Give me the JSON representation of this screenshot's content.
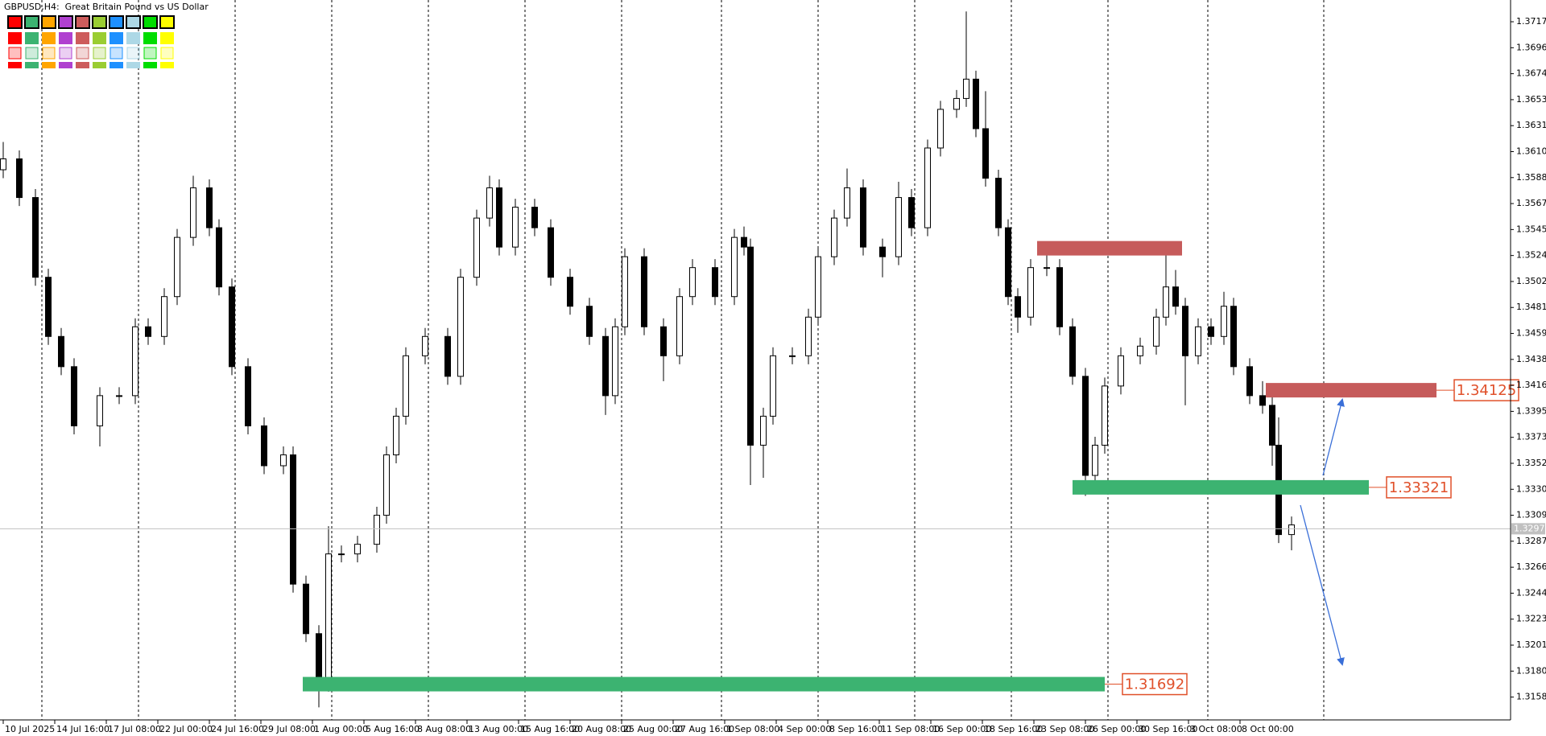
{
  "chart_data": {
    "type": "candlestick",
    "title": "GBPUSD,H4:  Great Britain Pound vs US Dollar",
    "x": [
      0,
      5,
      10,
      14,
      18,
      22,
      30,
      36,
      41,
      45,
      50,
      54,
      59,
      64,
      67,
      71,
      76,
      81,
      87,
      90,
      94,
      98,
      101,
      105,
      110,
      116,
      119,
      122,
      125,
      131,
      138,
      142,
      147,
      151,
      154,
      159,
      165,
      170,
      176,
      182,
      187,
      190,
      193,
      199,
      205,
      210,
      214,
      221,
      227,
      230,
      232,
      236,
      239,
      245,
      250,
      253,
      258,
      262,
      267,
      273,
      278,
      282,
      287,
      291,
      296,
      299,
      302,
      305,
      309,
      312,
      315,
      319,
      324,
      328,
      332,
      336,
      339,
      342,
      347,
      353,
      358,
      361,
      364,
      367,
      371,
      375,
      379,
      382,
      387,
      391,
      394,
      396,
      400
    ],
    "open": [
      1.3595,
      1.3604,
      1.3572,
      1.3506,
      1.3457,
      1.3432,
      1.3383,
      1.3408,
      1.3408,
      1.3465,
      1.3457,
      1.349,
      1.3539,
      1.358,
      1.3547,
      1.3498,
      1.3432,
      1.3383,
      1.335,
      1.3359,
      1.3252,
      1.3211,
      1.317,
      1.3277,
      1.3277,
      1.3285,
      1.3309,
      1.3359,
      1.3391,
      1.3441,
      1.3457,
      1.3424,
      1.3506,
      1.3555,
      1.358,
      1.3531,
      1.3564,
      1.3547,
      1.3506,
      1.3482,
      1.3457,
      1.3408,
      1.3465,
      1.3523,
      1.3465,
      1.3441,
      1.349,
      1.3514,
      1.349,
      1.3539,
      1.3531,
      1.3367,
      1.3391,
      1.3441,
      1.3441,
      1.3473,
      1.3523,
      1.3555,
      1.358,
      1.3531,
      1.3523,
      1.3572,
      1.3547,
      1.3613,
      1.3645,
      1.3654,
      1.367,
      1.3629,
      1.3588,
      1.3547,
      1.349,
      1.3473,
      1.3514,
      1.3514,
      1.3465,
      1.3424,
      1.3342,
      1.3367,
      1.3416,
      1.3441,
      1.3449,
      1.3473,
      1.3498,
      1.3482,
      1.3441,
      1.3465,
      1.3457,
      1.3482,
      1.3432,
      1.3408,
      1.34,
      1.3367,
      1.3293
    ],
    "high": [
      1.3618,
      1.3611,
      1.3579,
      1.3513,
      1.3464,
      1.3439,
      1.3415,
      1.3415,
      1.3472,
      1.3472,
      1.3497,
      1.3546,
      1.359,
      1.3587,
      1.3554,
      1.3505,
      1.3439,
      1.339,
      1.3366,
      1.3366,
      1.3259,
      1.3218,
      1.33,
      1.3284,
      1.3292,
      1.3316,
      1.3366,
      1.3398,
      1.3448,
      1.3464,
      1.3464,
      1.3513,
      1.3562,
      1.359,
      1.3587,
      1.3571,
      1.3571,
      1.3554,
      1.3513,
      1.3489,
      1.3464,
      1.3472,
      1.353,
      1.353,
      1.3472,
      1.3497,
      1.3521,
      1.3521,
      1.3546,
      1.3548,
      1.3538,
      1.3398,
      1.3448,
      1.3448,
      1.348,
      1.353,
      1.3562,
      1.3596,
      1.3587,
      1.3538,
      1.3585,
      1.3579,
      1.362,
      1.3652,
      1.3661,
      1.3726,
      1.3677,
      1.366,
      1.3595,
      1.3554,
      1.3497,
      1.3521,
      1.353,
      1.3521,
      1.3472,
      1.3431,
      1.3374,
      1.3423,
      1.3448,
      1.3456,
      1.348,
      1.353,
      1.3512,
      1.3489,
      1.3472,
      1.3472,
      1.3494,
      1.3489,
      1.3439,
      1.342,
      1.3407,
      1.339,
      1.3308
    ],
    "low": [
      1.3588,
      1.3565,
      1.3499,
      1.345,
      1.3425,
      1.3376,
      1.3366,
      1.3401,
      1.3401,
      1.345,
      1.345,
      1.3483,
      1.3532,
      1.354,
      1.3491,
      1.3425,
      1.3376,
      1.3343,
      1.3343,
      1.3245,
      1.3204,
      1.315,
      1.3163,
      1.327,
      1.327,
      1.3278,
      1.3302,
      1.3352,
      1.3384,
      1.3434,
      1.3417,
      1.3417,
      1.3499,
      1.3548,
      1.3524,
      1.3524,
      1.354,
      1.3499,
      1.3475,
      1.345,
      1.3392,
      1.3401,
      1.3458,
      1.3458,
      1.342,
      1.3434,
      1.3483,
      1.3483,
      1.3483,
      1.3524,
      1.3334,
      1.334,
      1.3384,
      1.3434,
      1.3434,
      1.3466,
      1.3516,
      1.3548,
      1.3524,
      1.3506,
      1.3516,
      1.354,
      1.354,
      1.3606,
      1.3638,
      1.3647,
      1.3622,
      1.3581,
      1.354,
      1.3483,
      1.346,
      1.3466,
      1.3507,
      1.3458,
      1.3417,
      1.3325,
      1.3335,
      1.336,
      1.3409,
      1.3434,
      1.3442,
      1.3466,
      1.3475,
      1.34,
      1.3434,
      1.345,
      1.345,
      1.3425,
      1.3401,
      1.3393,
      1.335,
      1.3286,
      1.328
    ],
    "close": [
      1.3604,
      1.3572,
      1.3506,
      1.3457,
      1.3432,
      1.3383,
      1.3408,
      1.3408,
      1.3465,
      1.3457,
      1.349,
      1.3539,
      1.358,
      1.3547,
      1.3498,
      1.3432,
      1.3383,
      1.335,
      1.3359,
      1.3252,
      1.3211,
      1.317,
      1.3277,
      1.3277,
      1.3285,
      1.3309,
      1.3359,
      1.3391,
      1.3441,
      1.3457,
      1.3424,
      1.3506,
      1.3555,
      1.358,
      1.3531,
      1.3564,
      1.3547,
      1.3506,
      1.3482,
      1.3457,
      1.3408,
      1.3465,
      1.3523,
      1.3465,
      1.3441,
      1.349,
      1.3514,
      1.349,
      1.3539,
      1.3531,
      1.3367,
      1.3391,
      1.3441,
      1.3441,
      1.3473,
      1.3523,
      1.3555,
      1.358,
      1.3531,
      1.3523,
      1.3572,
      1.3547,
      1.3613,
      1.3645,
      1.3654,
      1.367,
      1.3629,
      1.3588,
      1.3547,
      1.349,
      1.3473,
      1.3514,
      1.3514,
      1.3465,
      1.3424,
      1.3342,
      1.3367,
      1.3416,
      1.3441,
      1.3449,
      1.3473,
      1.3498,
      1.3482,
      1.3441,
      1.3465,
      1.3457,
      1.3482,
      1.3432,
      1.3408,
      1.34,
      1.3367,
      1.3293,
      1.3301
    ],
    "up_color": "#ffffff",
    "down_color": "#000000",
    "xlim": [
      -1,
      468
    ],
    "ylim": [
      1.31396,
      1.37355
    ],
    "xticks": [
      {
        "value": 0,
        "label": "10 Jul 2025"
      },
      {
        "value": 16,
        "label": "14 Jul 16:00"
      },
      {
        "value": 32,
        "label": "17 Jul 08:00"
      },
      {
        "value": 48,
        "label": "22 Jul 00:00"
      },
      {
        "value": 64,
        "label": "24 Jul 16:00"
      },
      {
        "value": 80,
        "label": "29 Jul 08:00"
      },
      {
        "value": 96,
        "label": "1 Aug 00:00"
      },
      {
        "value": 112,
        "label": "5 Aug 16:00"
      },
      {
        "value": 128,
        "label": "8 Aug 08:00"
      },
      {
        "value": 144,
        "label": "13 Aug 00:00"
      },
      {
        "value": 160,
        "label": "15 Aug 16:00"
      },
      {
        "value": 176,
        "label": "20 Aug 08:00"
      },
      {
        "value": 192,
        "label": "25 Aug 00:00"
      },
      {
        "value": 208,
        "label": "27 Aug 16:00"
      },
      {
        "value": 224,
        "label": "1 Sep 08:00"
      },
      {
        "value": 240,
        "label": "4 Sep 00:00"
      },
      {
        "value": 256,
        "label": "8 Sep 16:00"
      },
      {
        "value": 272,
        "label": "11 Sep 08:00"
      },
      {
        "value": 288,
        "label": "16 Sep 00:00"
      },
      {
        "value": 304,
        "label": "18 Sep 16:00"
      },
      {
        "value": 320,
        "label": "23 Sep 08:00"
      },
      {
        "value": 336,
        "label": "26 Sep 00:00"
      },
      {
        "value": 352,
        "label": "30 Sep 16:00"
      },
      {
        "value": 368,
        "label": "3 Oct 08:00"
      },
      {
        "value": 384,
        "label": "8 Oct 00:00"
      }
    ],
    "yticks": [
      1.37175,
      {
        "value": 1.3696,
        "label": "1.36960"
      },
      1.36745,
      {
        "value": 1.3653,
        "label": "1.36530"
      },
      1.36315,
      {
        "value": 1.361,
        "label": "1.36100"
      },
      1.35885,
      {
        "value": 1.3567,
        "label": "1.35670"
      },
      1.35455,
      {
        "value": 1.3524,
        "label": "1.35240"
      },
      1.35025,
      {
        "value": 1.3481,
        "label": "1.34810"
      },
      1.34595,
      {
        "value": 1.3438,
        "label": "1.34380"
      },
      1.34165,
      {
        "value": 1.3395,
        "label": "1.33950"
      },
      1.33735,
      {
        "value": 1.3352,
        "label": "1.33520"
      },
      1.33305,
      {
        "value": 1.3309,
        "label": "1.33090"
      },
      1.32875,
      {
        "value": 1.3266,
        "label": "1.32660"
      },
      1.32445,
      {
        "value": 1.3223,
        "label": "1.32230"
      },
      1.32015,
      {
        "value": 1.318,
        "label": "1.31800"
      },
      1.31585
    ],
    "grid": false,
    "period_separators": [
      12,
      42,
      72,
      102,
      132,
      162,
      192,
      223,
      253,
      283,
      313,
      343,
      374,
      410
    ],
    "current_price": 1.32978,
    "zones": [
      {
        "price": 1.353,
        "x": [
          321,
          366
        ],
        "color": "#c65b5b",
        "show_price": false
      },
      {
        "price": 1.34125,
        "x": [
          392,
          445
        ],
        "color": "#c65b5b",
        "show_price": true
      },
      {
        "price": 1.33321,
        "x": [
          332,
          424
        ],
        "color": "#3cb371",
        "show_price": true
      },
      {
        "price": 1.31692,
        "x": [
          93,
          342
        ],
        "color": "#3cb371",
        "show_price": true
      }
    ]
  }
}
